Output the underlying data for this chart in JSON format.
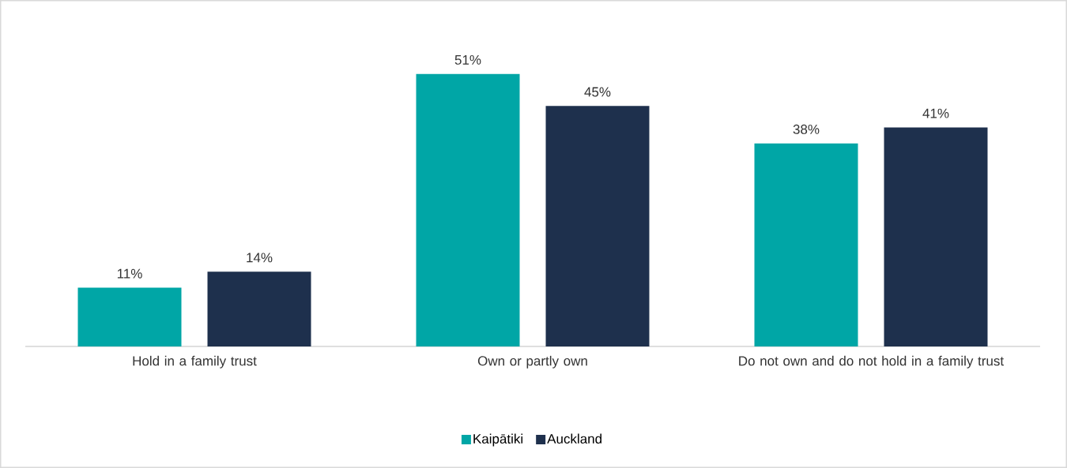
{
  "chart_data": {
    "type": "bar",
    "categories": [
      "Hold in a family trust",
      "Own or partly own",
      "Do not own and do not hold in a family trust"
    ],
    "series": [
      {
        "name": "Kaipātiki",
        "color": "#00a6a6",
        "values": [
          11,
          51,
          38
        ],
        "value_labels": [
          "11%",
          "51%",
          "38%"
        ]
      },
      {
        "name": "Auckland",
        "color": "#1e304d",
        "values": [
          14,
          45,
          41
        ],
        "value_labels": [
          "14%",
          "45%",
          "41%"
        ]
      }
    ],
    "legend": "bottom"
  }
}
